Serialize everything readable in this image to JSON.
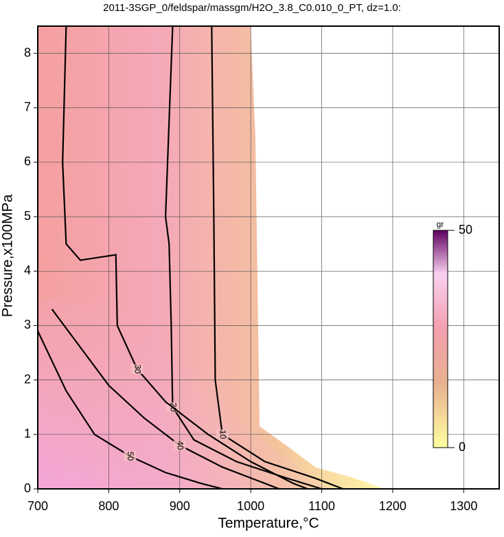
{
  "chart_data": {
    "type": "contour",
    "title": "2011-3SGP_0/feldspar/massgm/H2O_3.8_C0.010_0_PT, dz=1.0:",
    "x_label": "Temperature,°C",
    "y_label": "Pressure,x100MPa",
    "xlim": [
      700,
      1350
    ],
    "ylim": [
      0,
      8.5
    ],
    "xticks": [
      700,
      800,
      900,
      1000,
      1100,
      1200,
      1300
    ],
    "yticks": [
      0,
      1,
      2,
      3,
      4,
      5,
      6,
      7,
      8
    ],
    "grid": true,
    "contours": [
      {
        "level": 10,
        "x": [
          945,
          948,
          950,
          960,
          1020,
          1090,
          1130
        ],
        "y": [
          8.5,
          5,
          2,
          1,
          0.5,
          0.2,
          0
        ]
      },
      {
        "level": 20,
        "x": [
          890,
          880,
          885,
          888,
          890,
          920,
          980,
          1050,
          1100
        ],
        "y": [
          8.5,
          5,
          4.5,
          3,
          1.5,
          0.9,
          0.5,
          0.2,
          0
        ]
      },
      {
        "level": 30,
        "x": [
          740,
          735,
          740,
          760,
          810,
          812,
          840,
          880,
          940,
          1000,
          1060,
          1080
        ],
        "y": [
          8.5,
          6,
          4.5,
          4.2,
          4.3,
          3,
          2.2,
          1.6,
          1,
          0.5,
          0.1,
          0
        ]
      },
      {
        "level": 40,
        "x": [
          720,
          760,
          800,
          850,
          900,
          960,
          1020,
          1040
        ],
        "y": [
          3.3,
          2.6,
          1.9,
          1.3,
          0.8,
          0.4,
          0.1,
          0
        ]
      },
      {
        "level": 50,
        "x": [
          700,
          740,
          780,
          830,
          880,
          930,
          960
        ],
        "y": [
          2.9,
          1.8,
          1.0,
          0.6,
          0.3,
          0.1,
          0
        ]
      }
    ],
    "colorbar": {
      "label": "gr",
      "lim": [
        0,
        50
      ],
      "ticks": [
        0,
        50
      ]
    }
  }
}
